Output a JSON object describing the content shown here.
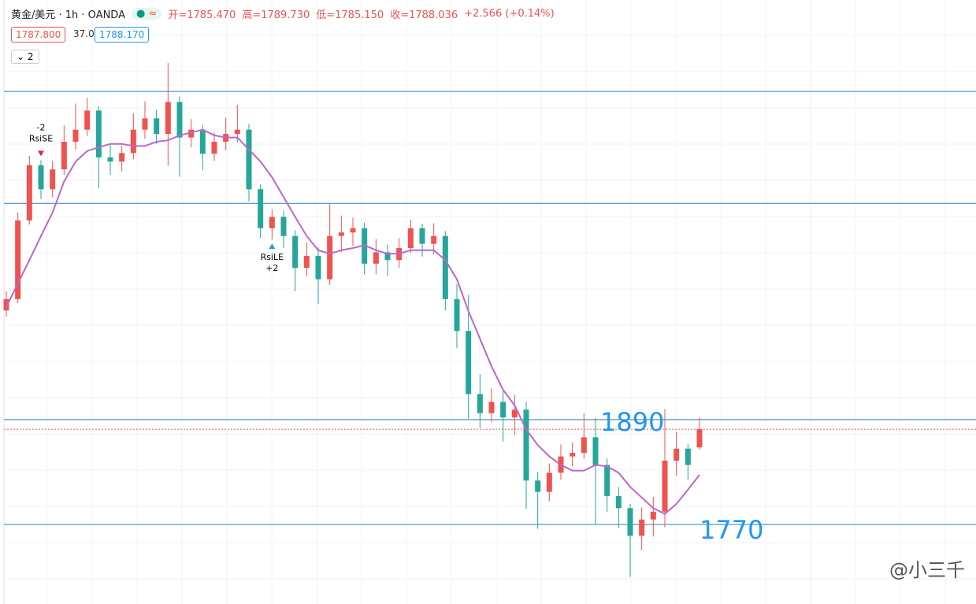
{
  "header": {
    "symbol": "黄金/美元 · 1h · OANDA",
    "ohlc": [
      "开=1785.470",
      "高=1789.730",
      "低=1785.150",
      "收=1788.036"
    ],
    "change": "+2.566 (+0.14%)",
    "bid": "1787.800",
    "spread": "37.0",
    "ask": "1788.170",
    "indicator_count": "2"
  },
  "chart_data": {
    "type": "candlestick",
    "ylim": [
      1763.38,
      1848.6
    ],
    "up_color": "#ef5350",
    "down_color": "#26a69a",
    "open": [
      1804.8,
      1806.4,
      1817.5,
      1825.3,
      1821.9,
      1824.7,
      1828.6,
      1830.3,
      1833.0,
      1826.4,
      1825.8,
      1827.0,
      1830.3,
      1831.9,
      1829.7,
      1834.2,
      1829.2,
      1830.3,
      1826.9,
      1828.6,
      1829.7,
      1830.3,
      1821.9,
      1816.4,
      1818.0,
      1815.3,
      1810.8,
      1812.5,
      1809.2,
      1815.3,
      1815.8,
      1816.4,
      1811.4,
      1813.0,
      1811.9,
      1813.6,
      1816.4,
      1814.2,
      1815.3,
      1806.4,
      1801.9,
      1793.0,
      1790.3,
      1791.9,
      1789.7,
      1790.8,
      1780.8,
      1779.2,
      1781.9,
      1784.2,
      1784.7,
      1786.9,
      1783.0,
      1778.6,
      1776.9,
      1773.0,
      1775.3,
      1776.4,
      1783.6,
      1785.3,
      1785.47
    ],
    "high": [
      1807.5,
      1818.6,
      1826.6,
      1826.0,
      1825.9,
      1830.9,
      1834.0,
      1834.8,
      1833.6,
      1828.2,
      1828.1,
      1832.6,
      1834.3,
      1833.1,
      1839.7,
      1835.0,
      1831.8,
      1831.0,
      1829.9,
      1832.0,
      1833.8,
      1831.1,
      1822.6,
      1819.1,
      1818.9,
      1816.1,
      1814.4,
      1813.7,
      1819.8,
      1818.2,
      1817.9,
      1817.2,
      1814.9,
      1814.1,
      1815.0,
      1817.6,
      1817.0,
      1817.1,
      1816.0,
      1808.5,
      1807.0,
      1795.8,
      1793.8,
      1793.4,
      1792.9,
      1791.9,
      1782.0,
      1783.2,
      1785.9,
      1786.2,
      1790.3,
      1789.6,
      1783.9,
      1779.9,
      1777.5,
      1777.0,
      1778.5,
      1790.9,
      1787.7,
      1786.0,
      1789.73
    ],
    "low": [
      1803.9,
      1805.8,
      1816.9,
      1820.5,
      1820.8,
      1823.9,
      1827.5,
      1829.4,
      1822.0,
      1823.9,
      1824.4,
      1826.1,
      1829.0,
      1828.3,
      1825.2,
      1823.7,
      1827.8,
      1824.6,
      1825.9,
      1827.4,
      1828.5,
      1820.2,
      1815.0,
      1814.8,
      1813.6,
      1807.5,
      1809.6,
      1805.7,
      1808.4,
      1813.0,
      1813.9,
      1809.9,
      1809.9,
      1809.7,
      1810.8,
      1812.9,
      1812.4,
      1812.7,
      1804.8,
      1799.5,
      1789.5,
      1788.2,
      1789.0,
      1786.3,
      1787.2,
      1776.8,
      1774.0,
      1777.9,
      1780.9,
      1782.8,
      1783.9,
      1774.6,
      1776.4,
      1774.1,
      1767.2,
      1771.0,
      1772.9,
      1774.2,
      1781.5,
      1780.9,
      1785.15
    ],
    "close": [
      1806.4,
      1817.5,
      1825.3,
      1821.9,
      1824.7,
      1828.6,
      1830.3,
      1833.0,
      1826.4,
      1825.8,
      1827.0,
      1830.3,
      1831.9,
      1829.7,
      1834.2,
      1829.2,
      1830.3,
      1826.9,
      1828.6,
      1829.7,
      1830.3,
      1821.9,
      1816.4,
      1818.0,
      1815.3,
      1810.8,
      1812.5,
      1809.2,
      1815.3,
      1815.8,
      1816.4,
      1811.4,
      1813.0,
      1811.9,
      1813.6,
      1816.4,
      1814.2,
      1815.3,
      1806.4,
      1801.9,
      1793.0,
      1790.3,
      1791.9,
      1789.7,
      1790.8,
      1780.8,
      1779.2,
      1781.9,
      1784.2,
      1784.7,
      1786.9,
      1783.0,
      1778.6,
      1776.9,
      1773.0,
      1775.3,
      1776.4,
      1783.6,
      1785.3,
      1783.0,
      1788.036
    ],
    "ma": {
      "color": "#ba68c8",
      "values": [
        1805.3,
        1808.6,
        1811.9,
        1815.3,
        1818.6,
        1823.0,
        1825.8,
        1827.3,
        1827.8,
        1828.3,
        1828.3,
        1828.0,
        1828.0,
        1828.6,
        1828.8,
        1829.5,
        1829.9,
        1830.3,
        1829.5,
        1829.2,
        1829.2,
        1827.5,
        1825.8,
        1823.6,
        1820.8,
        1818.0,
        1815.3,
        1813.3,
        1812.8,
        1813.3,
        1813.6,
        1814.0,
        1813.3,
        1812.8,
        1812.8,
        1813.3,
        1813.3,
        1813.3,
        1811.9,
        1809.2,
        1804.7,
        1800.8,
        1796.9,
        1793.6,
        1791.4,
        1788.0,
        1785.8,
        1784.2,
        1783.0,
        1782.2,
        1782.2,
        1783.0,
        1782.8,
        1781.9,
        1779.9,
        1778.4,
        1776.9,
        1776.1,
        1777.5,
        1779.5,
        1781.6
      ]
    },
    "hlines": {
      "color": "#2a7fc0",
      "values": [
        1835.7,
        1819.9,
        1789.4,
        1774.6
      ]
    },
    "annotations": [
      "1890",
      "1770"
    ],
    "signals": [
      {
        "index": 3,
        "label": "RsiSE",
        "size": "-2"
      },
      {
        "index": 23,
        "label": "RsiLE",
        "size": "+2"
      }
    ]
  },
  "watermark": "@小三千"
}
